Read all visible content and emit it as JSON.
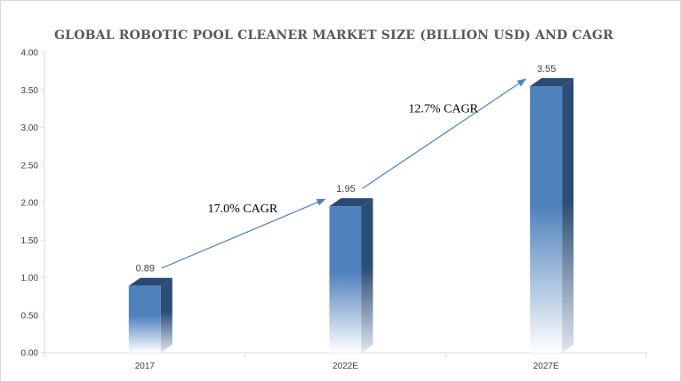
{
  "chart_data": {
    "type": "bar",
    "title": "GLOBAL ROBOTIC POOL CLEANER MARKET SIZE (BILLION USD) AND CAGR",
    "categories": [
      "2017",
      "2022E",
      "2027E"
    ],
    "values": [
      0.89,
      1.95,
      3.55
    ],
    "data_labels": [
      "0.89",
      "1.95",
      "3.55"
    ],
    "ylim": [
      0,
      4
    ],
    "yticks": [
      "0.00",
      "0.50",
      "1.00",
      "1.50",
      "2.00",
      "2.50",
      "3.00",
      "3.50",
      "4.00"
    ],
    "xlabel": "",
    "ylabel": "",
    "grid": false,
    "bar_style": "3d-column-gradient",
    "colors": {
      "bar_front": "#4f81bd",
      "bar_side": "#2c4d75",
      "bar_top": "#2a4a72",
      "arrow": "#4f81bd",
      "axis": "#d9d9d9"
    },
    "annotations": [
      {
        "text": "17.0% CAGR",
        "from_category": "2017",
        "to_category": "2022E"
      },
      {
        "text": "12.7% CAGR",
        "from_category": "2022E",
        "to_category": "2027E"
      }
    ]
  }
}
